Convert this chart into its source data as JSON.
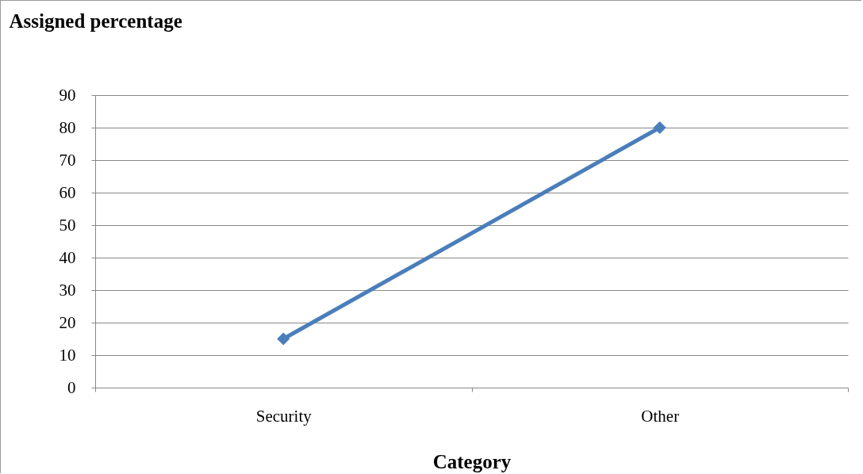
{
  "chart_data": {
    "type": "line",
    "ylabel": "Assigned percentage",
    "xlabel": "Category",
    "categories": [
      "Security",
      "Other"
    ],
    "series": [
      {
        "color": "#4a7ebb",
        "values": [
          15,
          80
        ]
      }
    ],
    "ylim": [
      0,
      90
    ],
    "yticks": [
      0,
      10,
      20,
      30,
      40,
      50,
      60,
      70,
      80,
      90
    ],
    "grid": "y",
    "marker": "diamond",
    "line_style": "solid"
  }
}
